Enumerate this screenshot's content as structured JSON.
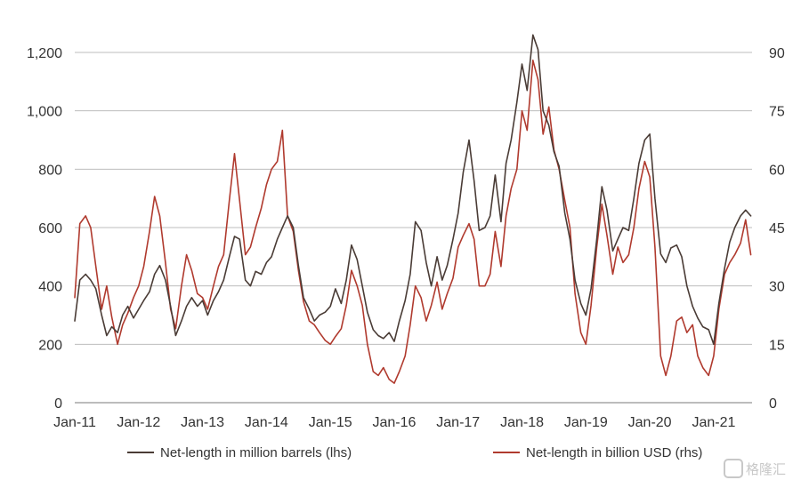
{
  "chart_data": {
    "type": "line",
    "title": "",
    "xlabel": "",
    "ylabel_left": "",
    "ylabel_right": "",
    "x_ticks": [
      "Jan-11",
      "Jan-12",
      "Jan-13",
      "Jan-14",
      "Jan-15",
      "Jan-16",
      "Jan-17",
      "Jan-18",
      "Jan-19",
      "Jan-20",
      "Jan-21"
    ],
    "y_left": {
      "ylim": [
        0,
        1200
      ],
      "ticks": [
        0,
        200,
        400,
        600,
        800,
        1000,
        1200
      ],
      "tick_labels": [
        "0",
        "200",
        "400",
        "600",
        "800",
        "1,000",
        "1,200"
      ]
    },
    "y_right": {
      "ylim": [
        0,
        90
      ],
      "ticks": [
        0,
        15,
        30,
        45,
        60,
        75,
        90
      ],
      "tick_labels": [
        "0",
        "15",
        "30",
        "45",
        "60",
        "75",
        "90"
      ]
    },
    "x_range": [
      2011.0,
      2021.6
    ],
    "grid": "horizontal",
    "legend_position": "bottom",
    "series": [
      {
        "name": "Net-length in million barrels (lhs)",
        "axis": "left",
        "color": "#4a3c36",
        "points": [
          [
            2011.0,
            280
          ],
          [
            2011.08,
            420
          ],
          [
            2011.17,
            440
          ],
          [
            2011.25,
            420
          ],
          [
            2011.33,
            390
          ],
          [
            2011.42,
            300
          ],
          [
            2011.5,
            230
          ],
          [
            2011.58,
            260
          ],
          [
            2011.67,
            240
          ],
          [
            2011.75,
            300
          ],
          [
            2011.83,
            330
          ],
          [
            2011.92,
            290
          ],
          [
            2012.0,
            320
          ],
          [
            2012.08,
            350
          ],
          [
            2012.17,
            380
          ],
          [
            2012.25,
            440
          ],
          [
            2012.33,
            470
          ],
          [
            2012.42,
            420
          ],
          [
            2012.5,
            330
          ],
          [
            2012.58,
            230
          ],
          [
            2012.67,
            280
          ],
          [
            2012.75,
            330
          ],
          [
            2012.83,
            360
          ],
          [
            2012.92,
            330
          ],
          [
            2013.0,
            350
          ],
          [
            2013.08,
            300
          ],
          [
            2013.17,
            350
          ],
          [
            2013.25,
            380
          ],
          [
            2013.33,
            420
          ],
          [
            2013.42,
            500
          ],
          [
            2013.5,
            570
          ],
          [
            2013.58,
            560
          ],
          [
            2013.67,
            420
          ],
          [
            2013.75,
            400
          ],
          [
            2013.83,
            450
          ],
          [
            2013.92,
            440
          ],
          [
            2014.0,
            480
          ],
          [
            2014.08,
            500
          ],
          [
            2014.17,
            560
          ],
          [
            2014.25,
            600
          ],
          [
            2014.33,
            640
          ],
          [
            2014.42,
            600
          ],
          [
            2014.5,
            470
          ],
          [
            2014.58,
            360
          ],
          [
            2014.67,
            320
          ],
          [
            2014.75,
            280
          ],
          [
            2014.83,
            300
          ],
          [
            2014.92,
            310
          ],
          [
            2015.0,
            330
          ],
          [
            2015.08,
            390
          ],
          [
            2015.17,
            340
          ],
          [
            2015.25,
            420
          ],
          [
            2015.33,
            540
          ],
          [
            2015.42,
            490
          ],
          [
            2015.5,
            400
          ],
          [
            2015.58,
            310
          ],
          [
            2015.67,
            250
          ],
          [
            2015.75,
            230
          ],
          [
            2015.83,
            220
          ],
          [
            2015.92,
            240
          ],
          [
            2016.0,
            210
          ],
          [
            2016.08,
            280
          ],
          [
            2016.17,
            350
          ],
          [
            2016.25,
            440
          ],
          [
            2016.33,
            620
          ],
          [
            2016.42,
            590
          ],
          [
            2016.5,
            480
          ],
          [
            2016.58,
            400
          ],
          [
            2016.67,
            500
          ],
          [
            2016.75,
            420
          ],
          [
            2016.83,
            470
          ],
          [
            2016.92,
            560
          ],
          [
            2017.0,
            650
          ],
          [
            2017.08,
            790
          ],
          [
            2017.17,
            900
          ],
          [
            2017.25,
            760
          ],
          [
            2017.33,
            590
          ],
          [
            2017.42,
            600
          ],
          [
            2017.5,
            640
          ],
          [
            2017.58,
            780
          ],
          [
            2017.67,
            620
          ],
          [
            2017.75,
            820
          ],
          [
            2017.83,
            900
          ],
          [
            2017.92,
            1030
          ],
          [
            2018.0,
            1160
          ],
          [
            2018.08,
            1070
          ],
          [
            2018.17,
            1260
          ],
          [
            2018.25,
            1210
          ],
          [
            2018.33,
            1000
          ],
          [
            2018.42,
            950
          ],
          [
            2018.5,
            860
          ],
          [
            2018.58,
            810
          ],
          [
            2018.67,
            650
          ],
          [
            2018.75,
            560
          ],
          [
            2018.83,
            420
          ],
          [
            2018.92,
            340
          ],
          [
            2019.0,
            300
          ],
          [
            2019.08,
            390
          ],
          [
            2019.17,
            560
          ],
          [
            2019.25,
            740
          ],
          [
            2019.33,
            660
          ],
          [
            2019.42,
            520
          ],
          [
            2019.5,
            560
          ],
          [
            2019.58,
            600
          ],
          [
            2019.67,
            590
          ],
          [
            2019.75,
            700
          ],
          [
            2019.83,
            820
          ],
          [
            2019.92,
            900
          ],
          [
            2020.0,
            920
          ],
          [
            2020.08,
            700
          ],
          [
            2020.17,
            510
          ],
          [
            2020.25,
            480
          ],
          [
            2020.33,
            530
          ],
          [
            2020.42,
            540
          ],
          [
            2020.5,
            500
          ],
          [
            2020.58,
            400
          ],
          [
            2020.67,
            330
          ],
          [
            2020.75,
            290
          ],
          [
            2020.83,
            260
          ],
          [
            2020.92,
            250
          ],
          [
            2021.0,
            200
          ],
          [
            2021.08,
            340
          ],
          [
            2021.17,
            460
          ],
          [
            2021.25,
            550
          ],
          [
            2021.33,
            600
          ],
          [
            2021.42,
            640
          ],
          [
            2021.5,
            660
          ],
          [
            2021.58,
            640
          ]
        ]
      },
      {
        "name": "Net-length in billion USD (rhs)",
        "axis": "right",
        "color": "#b03a2e",
        "points": [
          [
            2011.0,
            27
          ],
          [
            2011.08,
            46
          ],
          [
            2011.17,
            48
          ],
          [
            2011.25,
            45
          ],
          [
            2011.33,
            35
          ],
          [
            2011.42,
            24
          ],
          [
            2011.5,
            30
          ],
          [
            2011.58,
            22
          ],
          [
            2011.67,
            15
          ],
          [
            2011.75,
            20
          ],
          [
            2011.83,
            23
          ],
          [
            2011.92,
            27
          ],
          [
            2012.0,
            30
          ],
          [
            2012.08,
            35
          ],
          [
            2012.17,
            44
          ],
          [
            2012.25,
            53
          ],
          [
            2012.33,
            48
          ],
          [
            2012.42,
            36
          ],
          [
            2012.5,
            24
          ],
          [
            2012.58,
            19
          ],
          [
            2012.67,
            30
          ],
          [
            2012.75,
            38
          ],
          [
            2012.83,
            34
          ],
          [
            2012.92,
            28
          ],
          [
            2013.0,
            27
          ],
          [
            2013.08,
            24
          ],
          [
            2013.17,
            30
          ],
          [
            2013.25,
            35
          ],
          [
            2013.33,
            38
          ],
          [
            2013.42,
            52
          ],
          [
            2013.5,
            64
          ],
          [
            2013.58,
            52
          ],
          [
            2013.67,
            38
          ],
          [
            2013.75,
            40
          ],
          [
            2013.83,
            45
          ],
          [
            2013.92,
            50
          ],
          [
            2014.0,
            56
          ],
          [
            2014.08,
            60
          ],
          [
            2014.17,
            62
          ],
          [
            2014.25,
            70
          ],
          [
            2014.33,
            48
          ],
          [
            2014.42,
            44
          ],
          [
            2014.5,
            34
          ],
          [
            2014.58,
            26
          ],
          [
            2014.67,
            21
          ],
          [
            2014.75,
            20
          ],
          [
            2014.83,
            18
          ],
          [
            2014.92,
            16
          ],
          [
            2015.0,
            15
          ],
          [
            2015.08,
            17
          ],
          [
            2015.17,
            19
          ],
          [
            2015.25,
            25
          ],
          [
            2015.33,
            34
          ],
          [
            2015.42,
            30
          ],
          [
            2015.5,
            25
          ],
          [
            2015.58,
            15
          ],
          [
            2015.67,
            8
          ],
          [
            2015.75,
            7
          ],
          [
            2015.83,
            9
          ],
          [
            2015.92,
            6
          ],
          [
            2016.0,
            5
          ],
          [
            2016.08,
            8
          ],
          [
            2016.17,
            12
          ],
          [
            2016.25,
            20
          ],
          [
            2016.33,
            30
          ],
          [
            2016.42,
            27
          ],
          [
            2016.5,
            21
          ],
          [
            2016.58,
            25
          ],
          [
            2016.67,
            31
          ],
          [
            2016.75,
            24
          ],
          [
            2016.83,
            28
          ],
          [
            2016.92,
            32
          ],
          [
            2017.0,
            40
          ],
          [
            2017.08,
            43
          ],
          [
            2017.17,
            46
          ],
          [
            2017.25,
            42
          ],
          [
            2017.33,
            30
          ],
          [
            2017.42,
            30
          ],
          [
            2017.5,
            33
          ],
          [
            2017.58,
            44
          ],
          [
            2017.67,
            35
          ],
          [
            2017.75,
            48
          ],
          [
            2017.83,
            55
          ],
          [
            2017.92,
            60
          ],
          [
            2018.0,
            75
          ],
          [
            2018.08,
            70
          ],
          [
            2018.17,
            88
          ],
          [
            2018.25,
            83
          ],
          [
            2018.33,
            69
          ],
          [
            2018.42,
            76
          ],
          [
            2018.5,
            65
          ],
          [
            2018.58,
            60
          ],
          [
            2018.67,
            52
          ],
          [
            2018.75,
            45
          ],
          [
            2018.83,
            28
          ],
          [
            2018.92,
            18
          ],
          [
            2019.0,
            15
          ],
          [
            2019.08,
            25
          ],
          [
            2019.17,
            40
          ],
          [
            2019.25,
            51
          ],
          [
            2019.33,
            43
          ],
          [
            2019.42,
            33
          ],
          [
            2019.5,
            40
          ],
          [
            2019.58,
            36
          ],
          [
            2019.67,
            38
          ],
          [
            2019.75,
            45
          ],
          [
            2019.83,
            55
          ],
          [
            2019.92,
            62
          ],
          [
            2020.0,
            58
          ],
          [
            2020.08,
            40
          ],
          [
            2020.17,
            12
          ],
          [
            2020.25,
            7
          ],
          [
            2020.33,
            12
          ],
          [
            2020.42,
            21
          ],
          [
            2020.5,
            22
          ],
          [
            2020.58,
            18
          ],
          [
            2020.67,
            20
          ],
          [
            2020.75,
            12
          ],
          [
            2020.83,
            9
          ],
          [
            2020.92,
            7
          ],
          [
            2021.0,
            12
          ],
          [
            2021.08,
            24
          ],
          [
            2021.17,
            33
          ],
          [
            2021.25,
            36
          ],
          [
            2021.33,
            38
          ],
          [
            2021.42,
            41
          ],
          [
            2021.5,
            47
          ],
          [
            2021.58,
            38
          ]
        ]
      }
    ]
  },
  "watermark": {
    "text": "格隆汇"
  }
}
